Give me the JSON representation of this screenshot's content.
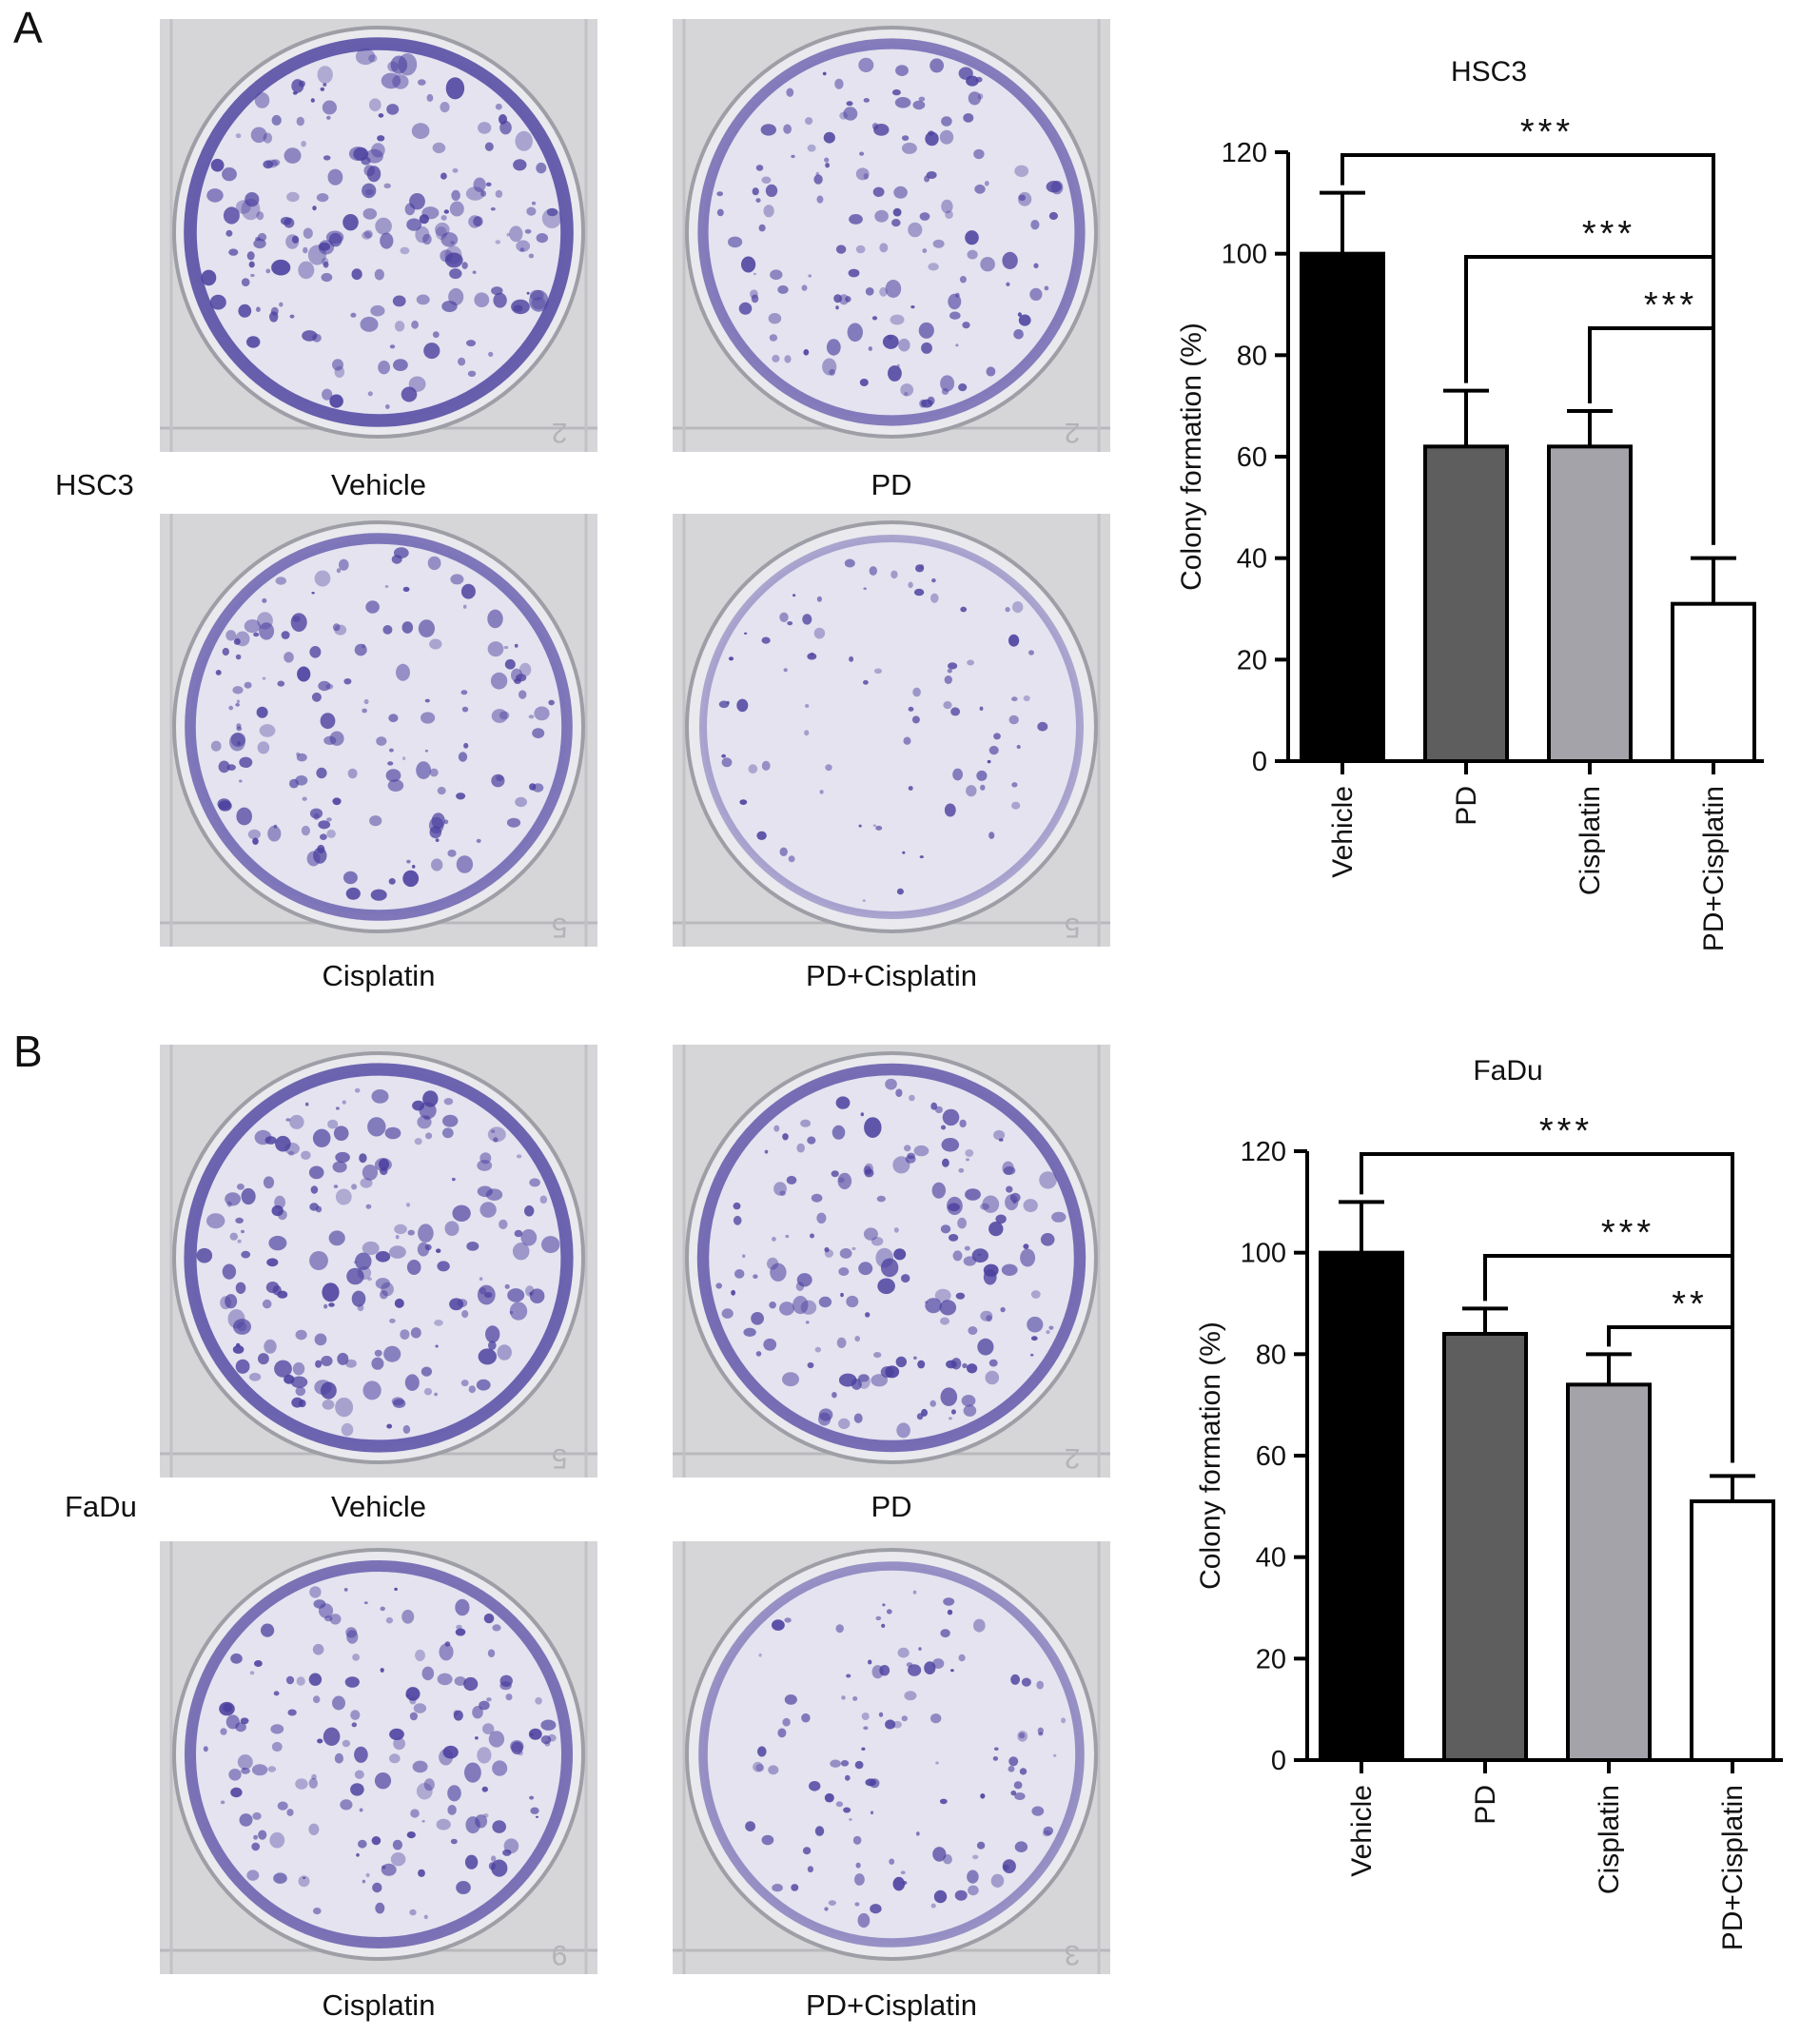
{
  "panels": [
    {
      "letter": "A",
      "row_label": "HSC3",
      "wells": [
        {
          "label": "Vehicle",
          "density": 0.95,
          "dish_label": "2"
        },
        {
          "label": "PD",
          "density": 0.65,
          "dish_label": "2"
        },
        {
          "label": "Cisplatin",
          "density": 0.7,
          "dish_label": "5"
        },
        {
          "label": "PD+Cisplatin",
          "density": 0.25,
          "dish_label": "5"
        }
      ]
    },
    {
      "letter": "B",
      "row_label": "FaDu",
      "wells": [
        {
          "label": "Vehicle",
          "density": 0.9,
          "dish_label": "5"
        },
        {
          "label": "PD",
          "density": 0.8,
          "dish_label": "2"
        },
        {
          "label": "Cisplatin",
          "density": 0.75,
          "dish_label": "9"
        },
        {
          "label": "PD+Cisplatin",
          "density": 0.45,
          "dish_label": "3"
        }
      ]
    }
  ],
  "colors": {
    "vehicle": "#000000",
    "pd": "#5e5e5e",
    "cisplatin": "#a3a3a9",
    "pd_cisplatin": "#ffffff",
    "stain": "#4b3f9e"
  },
  "chart_data": [
    {
      "type": "bar",
      "title": "HSC3",
      "ylabel": "Colony formation (%)",
      "xlabel": "",
      "categories": [
        "Vehicle",
        "PD",
        "Cisplatin",
        "PD+Cisplatin"
      ],
      "values": [
        100,
        62,
        62,
        31
      ],
      "errors": [
        12,
        11,
        7,
        9
      ],
      "ylim": [
        0,
        120
      ],
      "yticks": [
        0,
        20,
        40,
        60,
        80,
        100,
        120
      ],
      "comparisons": [
        {
          "from": 0,
          "to": 3,
          "label": "***"
        },
        {
          "from": 1,
          "to": 3,
          "label": "***"
        },
        {
          "from": 2,
          "to": 3,
          "label": "***"
        }
      ],
      "grid": false
    },
    {
      "type": "bar",
      "title": "FaDu",
      "ylabel": "Colony formation (%)",
      "xlabel": "",
      "categories": [
        "Vehicle",
        "PD",
        "Cisplatin",
        "PD+Cisplatin"
      ],
      "values": [
        100,
        84,
        74,
        51
      ],
      "errors": [
        10,
        5,
        6,
        5
      ],
      "ylim": [
        0,
        120
      ],
      "yticks": [
        0,
        20,
        40,
        60,
        80,
        100,
        120
      ],
      "comparisons": [
        {
          "from": 0,
          "to": 3,
          "label": "***"
        },
        {
          "from": 1,
          "to": 3,
          "label": "***"
        },
        {
          "from": 2,
          "to": 3,
          "label": "**"
        }
      ],
      "grid": false
    }
  ]
}
